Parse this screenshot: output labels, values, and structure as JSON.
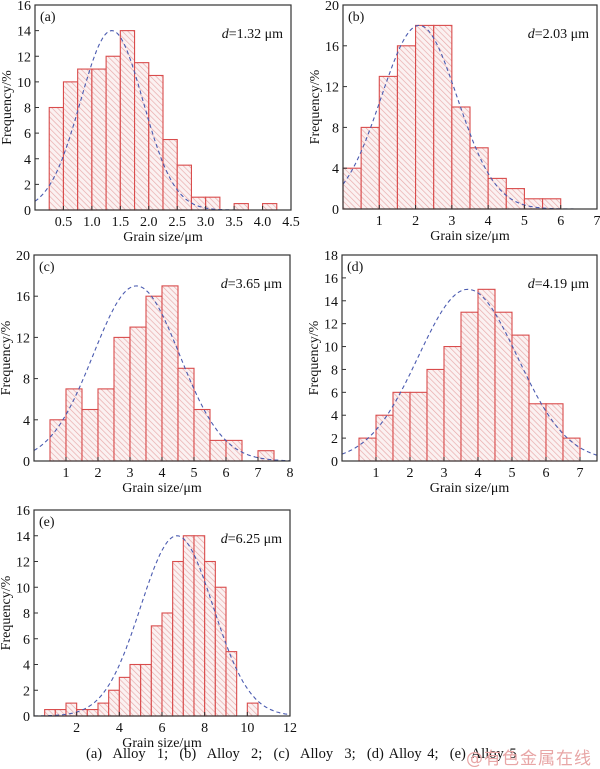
{
  "figure": {
    "caption": "(a)  Alloy  1;  (b)  Alloy  2;  (c)  Alloy  3;  (d) Alloy 4;  (e) Alloy 5",
    "watermark": "@有色金属在线",
    "colors": {
      "bar_edge": "#d94c4c",
      "hatch": "#e7a7a7",
      "fit_curve": "#4b5bb0",
      "axis": "#333333"
    }
  },
  "chart_data": [
    {
      "type": "bar",
      "panel": "(a)",
      "title": "",
      "annotation": "d=1.32 μm",
      "annotation_var": "d",
      "annotation_rest": "=1.32 μm",
      "xlabel": "Grain size/μm",
      "ylabel": "Frequency/%",
      "xlim": [
        0,
        4.5
      ],
      "ylim": [
        0,
        16
      ],
      "xticks": [
        0.5,
        1.0,
        1.5,
        2.0,
        2.5,
        3.0,
        3.5,
        4.0,
        4.5
      ],
      "xtick_labels": [
        "0.5",
        "1.0",
        "1.5",
        "2.0",
        "2.5",
        "3.0",
        "3.5",
        "4.0",
        "4.5"
      ],
      "yticks": [
        0,
        2,
        4,
        6,
        8,
        10,
        12,
        14,
        16
      ],
      "bin_width": 0.25,
      "bin_starts": [
        0.25,
        0.5,
        0.75,
        1.0,
        1.25,
        1.5,
        1.75,
        2.0,
        2.25,
        2.5,
        2.75,
        3.0,
        3.5,
        4.0
      ],
      "values": [
        8,
        10,
        11,
        11,
        12,
        14,
        11.5,
        10.5,
        5.5,
        3.5,
        1,
        1,
        0.5,
        0.5
      ],
      "fit": {
        "type": "normal",
        "peak": 14,
        "mean": 1.35,
        "sigma": 0.55
      }
    },
    {
      "type": "bar",
      "panel": "(b)",
      "title": "",
      "annotation": "d=2.03 μm",
      "annotation_var": "d",
      "annotation_rest": "=2.03 μm",
      "xlabel": "Grain size/μm",
      "ylabel": "Frequency/%",
      "xlim": [
        0,
        7
      ],
      "ylim": [
        0,
        20
      ],
      "xticks": [
        1,
        2,
        3,
        4,
        5,
        6,
        7
      ],
      "xtick_labels": [
        "1",
        "2",
        "3",
        "4",
        "5",
        "6",
        "7"
      ],
      "yticks": [
        0,
        4,
        8,
        12,
        16,
        20
      ],
      "bin_width": 0.5,
      "bin_starts": [
        0,
        0.5,
        1.0,
        1.5,
        2.0,
        2.5,
        3.0,
        3.5,
        4.0,
        4.5,
        5.0,
        5.5
      ],
      "values": [
        4,
        8,
        13,
        16,
        18,
        18,
        10,
        6,
        3,
        2,
        1,
        1
      ],
      "fit": {
        "type": "normal",
        "peak": 18,
        "mean": 2.1,
        "sigma": 1.05
      }
    },
    {
      "type": "bar",
      "panel": "(c)",
      "title": "",
      "annotation": "d=3.65 μm",
      "annotation_var": "d",
      "annotation_rest": "=3.65 μm",
      "xlabel": "Grain size/μm",
      "ylabel": "Frequency/%",
      "xlim": [
        0,
        8
      ],
      "ylim": [
        0,
        20
      ],
      "xticks": [
        1,
        2,
        3,
        4,
        5,
        6,
        7,
        8
      ],
      "xtick_labels": [
        "1",
        "2",
        "3",
        "4",
        "5",
        "6",
        "7",
        "8"
      ],
      "yticks": [
        0,
        4,
        8,
        12,
        16,
        20
      ],
      "bin_width": 0.5,
      "bin_starts": [
        0.5,
        1.0,
        1.5,
        2.0,
        2.5,
        3.0,
        3.5,
        4.0,
        4.5,
        5.0,
        5.5,
        6.0,
        7.0
      ],
      "values": [
        4,
        7,
        5,
        7,
        12,
        13,
        16,
        17,
        9,
        5,
        2,
        2,
        1
      ],
      "fit": {
        "type": "normal",
        "peak": 17,
        "mean": 3.2,
        "sigma": 1.35
      }
    },
    {
      "type": "bar",
      "panel": "(d)",
      "title": "",
      "annotation": "d=4.19 μm",
      "annotation_var": "d",
      "annotation_rest": "=4.19 μm",
      "xlabel": "Grain size/μm",
      "ylabel": "Frequency/%",
      "xlim": [
        0,
        7.5
      ],
      "ylim": [
        0,
        18
      ],
      "xticks": [
        1,
        2,
        3,
        4,
        5,
        6,
        7
      ],
      "xtick_labels": [
        "1",
        "2",
        "3",
        "4",
        "5",
        "6",
        "7"
      ],
      "yticks": [
        0,
        2,
        4,
        6,
        8,
        10,
        12,
        14,
        16,
        18
      ],
      "bin_width": 0.5,
      "bin_starts": [
        0.5,
        1.0,
        1.5,
        2.0,
        2.5,
        3.0,
        3.5,
        4.0,
        4.5,
        5.0,
        5.5,
        6.0,
        6.5
      ],
      "values": [
        2,
        4,
        6,
        6,
        8,
        10,
        13,
        15,
        13,
        11,
        5,
        5,
        2
      ],
      "fit": {
        "type": "normal",
        "peak": 15,
        "mean": 3.7,
        "sigma": 1.46
      }
    },
    {
      "type": "bar",
      "panel": "(e)",
      "title": "",
      "annotation": "d=6.25 μm",
      "annotation_var": "d",
      "annotation_rest": "=6.25 μm",
      "xlabel": "Grain size/μm",
      "ylabel": "Frequency/%",
      "xlim": [
        0,
        12
      ],
      "ylim": [
        0,
        16
      ],
      "xticks": [
        2,
        4,
        6,
        8,
        10,
        12
      ],
      "xtick_labels": [
        "2",
        "4",
        "6",
        "8",
        "10",
        "12"
      ],
      "yticks": [
        0,
        2,
        4,
        6,
        8,
        10,
        12,
        14,
        16
      ],
      "bin_width": 0.5,
      "bin_starts": [
        0.5,
        1.0,
        1.5,
        2.0,
        2.5,
        3.0,
        3.5,
        4.0,
        4.5,
        5.0,
        5.5,
        6.0,
        6.5,
        7.0,
        7.5,
        8.0,
        8.5,
        9.0,
        10.0
      ],
      "values": [
        0.5,
        0.5,
        1,
        0.5,
        0.5,
        1,
        2,
        3,
        4,
        4,
        7,
        8,
        12,
        14,
        14,
        12,
        10,
        5,
        1
      ],
      "fit": {
        "type": "normal",
        "peak": 14,
        "mean": 6.7,
        "sigma": 1.7
      }
    }
  ]
}
